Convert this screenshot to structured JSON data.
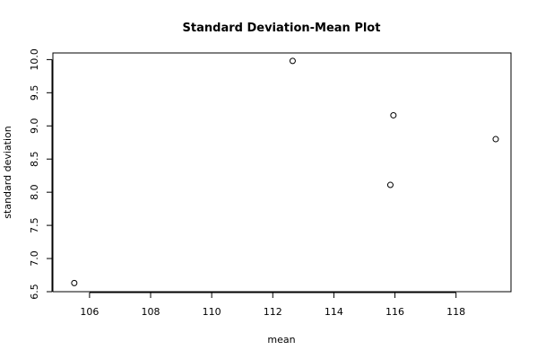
{
  "chart_data": {
    "type": "scatter",
    "title": "Standard Deviation-Mean Plot",
    "xlabel": "mean",
    "ylabel": "standard deviation",
    "xlim": [
      104.8,
      119.8
    ],
    "ylim": [
      6.5,
      10.1
    ],
    "x_ticks": [
      106,
      108,
      110,
      112,
      114,
      116,
      118
    ],
    "x_tick_labels": [
      "106",
      "108",
      "110",
      "112",
      "114",
      "116",
      "118"
    ],
    "y_ticks": [
      6.5,
      7.0,
      7.5,
      8.0,
      8.5,
      9.0,
      9.5,
      10.0
    ],
    "y_tick_labels": [
      "6.5",
      "7.0",
      "7.5",
      "8.0",
      "8.5",
      "9.0",
      "9.5",
      "10.0"
    ],
    "grid": false,
    "legend": false,
    "x": [
      105.5,
      112.65,
      115.85,
      115.95,
      119.3
    ],
    "y": [
      6.63,
      9.98,
      8.11,
      9.16,
      8.8
    ]
  }
}
